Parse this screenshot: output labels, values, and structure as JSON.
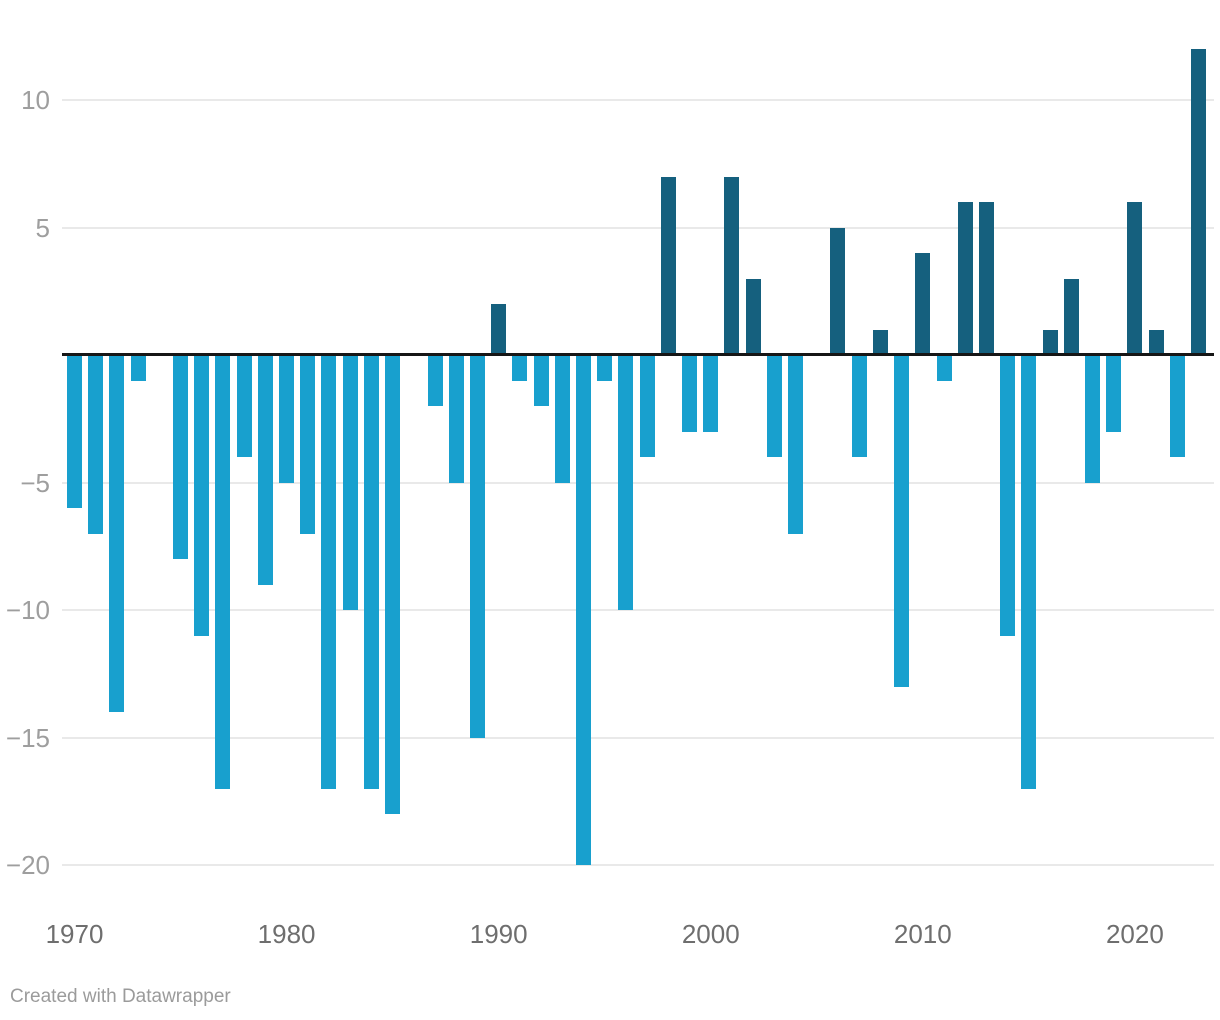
{
  "chart_data": {
    "type": "bar",
    "title": "",
    "categories": [
      1970,
      1971,
      1972,
      1973,
      1974,
      1975,
      1976,
      1977,
      1978,
      1979,
      1980,
      1981,
      1982,
      1983,
      1984,
      1985,
      1986,
      1987,
      1988,
      1989,
      1990,
      1991,
      1992,
      1993,
      1994,
      1995,
      1996,
      1997,
      1998,
      1999,
      2000,
      2001,
      2002,
      2003,
      2004,
      2005,
      2006,
      2007,
      2008,
      2009,
      2010,
      2011,
      2012,
      2013,
      2014,
      2015,
      2016,
      2017,
      2018,
      2019,
      2020,
      2021,
      2022,
      2023
    ],
    "values": [
      -6,
      -7,
      -14,
      -1,
      0,
      -8,
      -11,
      -17,
      -4,
      -9,
      -5,
      -7,
      -17,
      -10,
      -17,
      -18,
      0,
      -2,
      -5,
      -15,
      2,
      -1,
      -2,
      -5,
      -20,
      -1,
      -10,
      -4,
      7,
      -3,
      -3,
      7,
      3,
      -4,
      -7,
      0,
      5,
      -4,
      1,
      -13,
      4,
      -1,
      6,
      6,
      -11,
      -17,
      1,
      3,
      -5,
      -3,
      6,
      1,
      -4,
      12
    ],
    "xlabel": "",
    "ylabel": "",
    "ylim": [
      -20,
      13
    ],
    "grid": true,
    "legend": "none",
    "colors": {
      "positive_bar": "#15607E",
      "negative_bar": "#18A0CE",
      "zero_axis": "#161616",
      "gridline": "#e9e9e9"
    },
    "y_axis": {
      "ticks": [
        {
          "label": "10",
          "value": 10
        },
        {
          "label": "5",
          "value": 5
        },
        {
          "label": "−5",
          "value": -5
        },
        {
          "label": "−10",
          "value": -10
        },
        {
          "label": "−15",
          "value": -15
        },
        {
          "label": "−20",
          "value": -20
        }
      ]
    },
    "x_axis": {
      "ticks": [
        {
          "label": "1970",
          "year": 1970
        },
        {
          "label": "1980",
          "year": 1980
        },
        {
          "label": "1990",
          "year": 1990
        },
        {
          "label": "2000",
          "year": 2000
        },
        {
          "label": "2010",
          "year": 2010
        },
        {
          "label": "2020",
          "year": 2020
        }
      ]
    }
  },
  "footer": {
    "attribution": "Created with Datawrapper"
  }
}
